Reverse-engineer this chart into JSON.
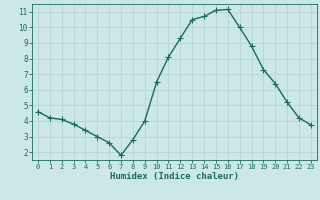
{
  "x": [
    0,
    1,
    2,
    3,
    4,
    5,
    6,
    7,
    8,
    9,
    10,
    11,
    12,
    13,
    14,
    15,
    16,
    17,
    18,
    19,
    20,
    21,
    22,
    23
  ],
  "y": [
    4.6,
    4.2,
    4.1,
    3.8,
    3.4,
    3.0,
    2.6,
    1.8,
    2.8,
    4.0,
    6.5,
    8.1,
    9.3,
    10.5,
    10.7,
    11.1,
    11.15,
    10.0,
    8.8,
    7.3,
    6.4,
    5.2,
    4.2,
    3.75
  ],
  "xlabel": "Humidex (Indice chaleur)",
  "xlim": [
    -0.5,
    23.5
  ],
  "ylim": [
    1.5,
    11.5
  ],
  "yticks": [
    2,
    3,
    4,
    5,
    6,
    7,
    8,
    9,
    10,
    11
  ],
  "xticks": [
    0,
    1,
    2,
    3,
    4,
    5,
    6,
    7,
    8,
    9,
    10,
    11,
    12,
    13,
    14,
    15,
    16,
    17,
    18,
    19,
    20,
    21,
    22,
    23
  ],
  "line_color": "#1a6b5a",
  "marker": "+",
  "bg_color": "#cce8e6",
  "grid_color": "#b8d4d2",
  "axis_color": "#1a6b5a",
  "xlabel_color": "#1a6b5a",
  "tick_color": "#1a6b5a",
  "line_width": 1.0,
  "marker_size": 4,
  "marker_edge_width": 0.8
}
